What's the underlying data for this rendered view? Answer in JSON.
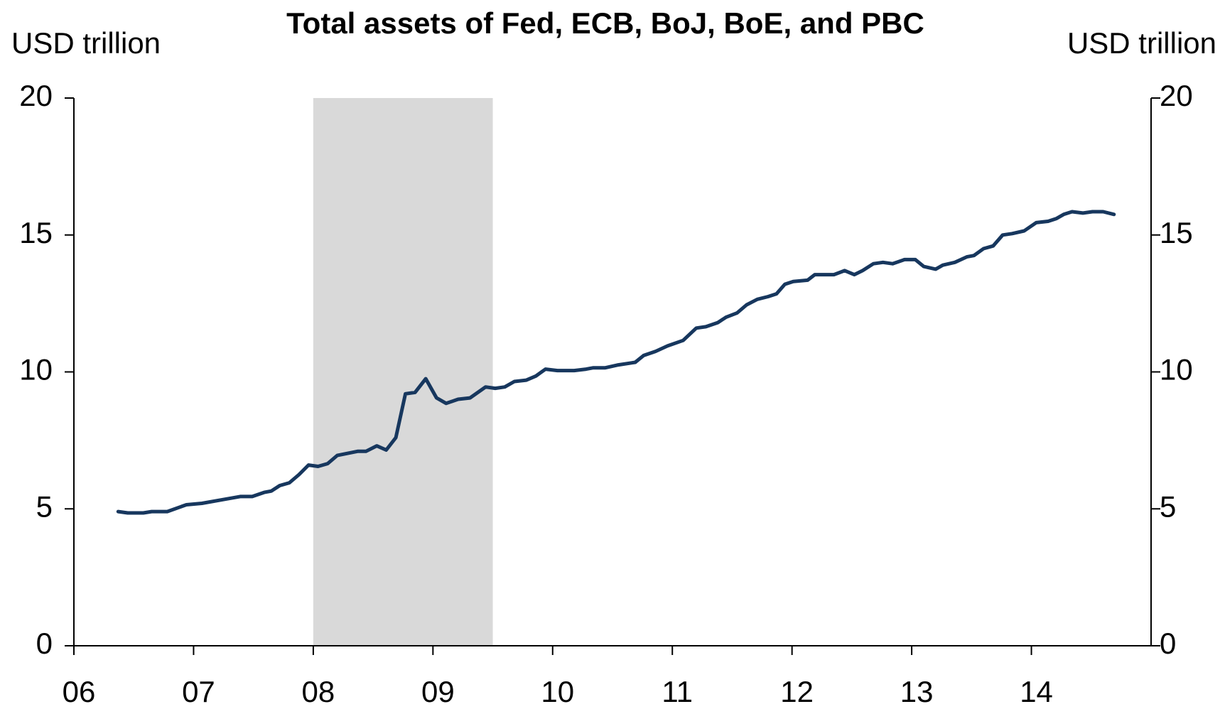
{
  "chart_data": {
    "type": "line",
    "title": "Total assets of Fed, ECB, BoJ, BoE, and PBC",
    "y_label": "USD trillion",
    "y2_label": "USD trillion",
    "color": "#17375e",
    "shade_color": "#d9d9d9",
    "shaded_region": [
      2008,
      2009.5
    ],
    "xlim": [
      2006,
      2015
    ],
    "xticks": [
      {
        "value": 2006,
        "label": "06"
      },
      {
        "value": 2007,
        "label": "07"
      },
      {
        "value": 2008,
        "label": "08"
      },
      {
        "value": 2009,
        "label": "09"
      },
      {
        "value": 2010,
        "label": "10"
      },
      {
        "value": 2011,
        "label": "11"
      },
      {
        "value": 2012,
        "label": "12"
      },
      {
        "value": 2013,
        "label": "13"
      },
      {
        "value": 2014,
        "label": "14"
      }
    ],
    "ylim": [
      0,
      20
    ],
    "yticks": [
      0,
      5,
      10,
      15,
      20
    ],
    "y2lim": [
      0,
      20
    ],
    "y2ticks": [
      0,
      5,
      10,
      15,
      20
    ],
    "x": [
      2006.37,
      2006.45,
      2006.58,
      2006.65,
      2006.78,
      2006.94,
      2007.07,
      2007.26,
      2007.39,
      2007.49,
      2007.59,
      2007.65,
      2007.72,
      2007.8,
      2007.88,
      2007.96,
      2008.04,
      2008.12,
      2008.2,
      2008.37,
      2008.44,
      2008.53,
      2008.61,
      2008.69,
      2008.77,
      2008.85,
      2008.94,
      2009.03,
      2009.11,
      2009.21,
      2009.31,
      2009.44,
      2009.52,
      2009.6,
      2009.68,
      2009.78,
      2009.86,
      2009.94,
      2010.04,
      2010.18,
      2010.28,
      2010.34,
      2010.44,
      2010.54,
      2010.69,
      2010.76,
      2010.86,
      2010.96,
      2011.09,
      2011.2,
      2011.28,
      2011.38,
      2011.45,
      2011.54,
      2011.62,
      2011.71,
      2011.8,
      2011.87,
      2011.94,
      2012.01,
      2012.13,
      2012.19,
      2012.35,
      2012.44,
      2012.52,
      2012.59,
      2012.68,
      2012.76,
      2012.84,
      2012.94,
      2013.03,
      2013.1,
      2013.2,
      2013.26,
      2013.36,
      2013.46,
      2013.52,
      2013.6,
      2013.68,
      2013.76,
      2013.84,
      2013.94,
      2014.04,
      2014.14,
      2014.21,
      2014.27,
      2014.34,
      2014.43,
      2014.51,
      2014.6,
      2014.69
    ],
    "values": [
      4.9,
      4.85,
      4.85,
      4.9,
      4.9,
      5.15,
      5.2,
      5.35,
      5.45,
      5.45,
      5.6,
      5.65,
      5.85,
      5.95,
      6.25,
      6.6,
      6.55,
      6.65,
      6.95,
      7.1,
      7.1,
      7.3,
      7.15,
      7.6,
      9.2,
      9.25,
      9.75,
      9.05,
      8.85,
      9.0,
      9.05,
      9.45,
      9.4,
      9.45,
      9.65,
      9.7,
      9.85,
      10.1,
      10.05,
      10.05,
      10.1,
      10.15,
      10.15,
      10.25,
      10.35,
      10.6,
      10.75,
      10.95,
      11.15,
      11.6,
      11.65,
      11.8,
      12.0,
      12.15,
      12.45,
      12.65,
      12.75,
      12.85,
      13.2,
      13.3,
      13.35,
      13.55,
      13.55,
      13.7,
      13.55,
      13.7,
      13.95,
      14.0,
      13.95,
      14.1,
      14.1,
      13.85,
      13.75,
      13.9,
      14.0,
      14.2,
      14.25,
      14.5,
      14.6,
      15.0,
      15.05,
      15.15,
      15.45,
      15.5,
      15.6,
      15.75,
      15.85,
      15.8,
      15.85,
      15.85,
      15.75
    ]
  }
}
